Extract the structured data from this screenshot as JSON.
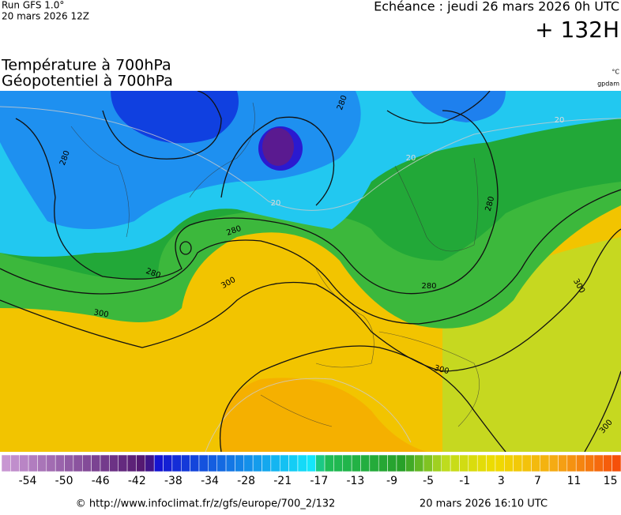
{
  "header": {
    "run": "Run GFS 1.0°",
    "run_date": "20 mars 2026 12Z",
    "forecast_time": "Echéance : jeudi 26 mars 2026 0h UTC",
    "lead": "+ 132H",
    "title_temperature": "Température à 700hPa",
    "title_geopotential": "Géopotentiel à 700hPa",
    "unit_temperature": "°C",
    "unit_geopotential": "gpdam"
  },
  "map": {
    "contour_labels": [
      "280",
      "280",
      "280",
      "300",
      "300",
      "280",
      "280",
      "300",
      "300",
      "300",
      "280"
    ],
    "isotherm_labels": [
      "20",
      "20",
      "20"
    ]
  },
  "colorbar": {
    "labels": [
      -54,
      -50,
      -46,
      -42,
      -38,
      -34,
      -28,
      -21,
      -17,
      -13,
      -9,
      -5,
      -1,
      3,
      7,
      11,
      15
    ]
  },
  "footer": {
    "source": "© http://www.infoclimat.fr/z/gfs/europe/700_2/132",
    "generated": "20 mars 2026 16:10 UTC"
  }
}
